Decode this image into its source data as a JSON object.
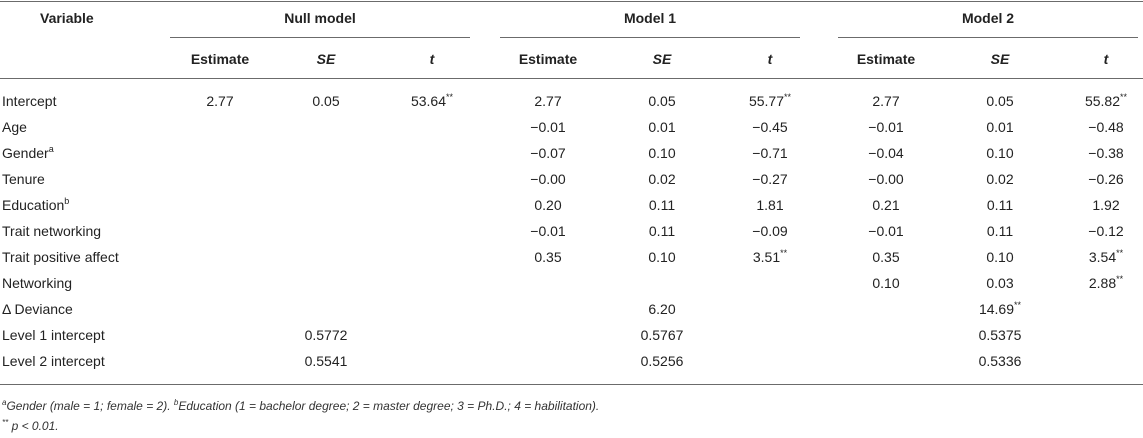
{
  "header": {
    "variable": "Variable",
    "groups": [
      "Null model",
      "Model 1",
      "Model 2"
    ],
    "sub": [
      "Estimate",
      "SE",
      "t"
    ]
  },
  "rows": [
    {
      "label": "Intercept",
      "sup": "",
      "cells": [
        "2.77",
        "0.05",
        "53.64",
        "2.77",
        "0.05",
        "55.77",
        "2.77",
        "0.05",
        "55.82"
      ],
      "stars": [
        "",
        "",
        "**",
        "",
        "",
        "**",
        "",
        "",
        "**"
      ]
    },
    {
      "label": "Age",
      "sup": "",
      "cells": [
        "",
        "",
        "",
        "−0.01",
        "0.01",
        "−0.45",
        "−0.01",
        "0.01",
        "−0.48"
      ],
      "stars": [
        "",
        "",
        "",
        "",
        "",
        "",
        "",
        "",
        ""
      ]
    },
    {
      "label": "Gender",
      "sup": "a",
      "cells": [
        "",
        "",
        "",
        "−0.07",
        "0.10",
        "−0.71",
        "−0.04",
        "0.10",
        "−0.38"
      ],
      "stars": [
        "",
        "",
        "",
        "",
        "",
        "",
        "",
        "",
        ""
      ]
    },
    {
      "label": "Tenure",
      "sup": "",
      "cells": [
        "",
        "",
        "",
        "−0.00",
        "0.02",
        "−0.27",
        "−0.00",
        "0.02",
        "−0.26"
      ],
      "stars": [
        "",
        "",
        "",
        "",
        "",
        "",
        "",
        "",
        ""
      ]
    },
    {
      "label": "Education",
      "sup": "b",
      "cells": [
        "",
        "",
        "",
        "0.20",
        "0.11",
        "1.81",
        "0.21",
        "0.11",
        "1.92"
      ],
      "stars": [
        "",
        "",
        "",
        "",
        "",
        "",
        "",
        "",
        ""
      ]
    },
    {
      "label": "Trait networking",
      "sup": "",
      "cells": [
        "",
        "",
        "",
        "−0.01",
        "0.11",
        "−0.09",
        "−0.01",
        "0.11",
        "−0.12"
      ],
      "stars": [
        "",
        "",
        "",
        "",
        "",
        "",
        "",
        "",
        ""
      ]
    },
    {
      "label": "Trait positive affect",
      "sup": "",
      "cells": [
        "",
        "",
        "",
        "0.35",
        "0.10",
        "3.51",
        "0.35",
        "0.10",
        "3.54"
      ],
      "stars": [
        "",
        "",
        "",
        "",
        "",
        "**",
        "",
        "",
        "**"
      ]
    },
    {
      "label": "Networking",
      "sup": "",
      "cells": [
        "",
        "",
        "",
        "",
        "",
        "",
        "0.10",
        "0.03",
        "2.88"
      ],
      "stars": [
        "",
        "",
        "",
        "",
        "",
        "",
        "",
        "",
        "**"
      ]
    }
  ],
  "fit_rows": [
    {
      "label": "Δ Deviance",
      "null": "",
      "null_stars": "",
      "m1": "6.20",
      "m1_stars": "",
      "m2": "14.69",
      "m2_stars": "**"
    },
    {
      "label": "Level 1 intercept",
      "null": "0.5772",
      "null_stars": "",
      "m1": "0.5767",
      "m1_stars": "",
      "m2": "0.5375",
      "m2_stars": ""
    },
    {
      "label": "Level 2 intercept",
      "null": "0.5541",
      "null_stars": "",
      "m1": "0.5256",
      "m1_stars": "",
      "m2": "0.5336",
      "m2_stars": ""
    }
  ],
  "notes": {
    "a_sup": "a",
    "a_text": "Gender (male = 1; female = 2). ",
    "b_sup": "b",
    "b_text": "Education (1 = bachelor degree; 2 = master degree; 3 = Ph.D.; 4 = habilitation).",
    "p_stars": "**",
    "p_text": " p < 0.01."
  }
}
